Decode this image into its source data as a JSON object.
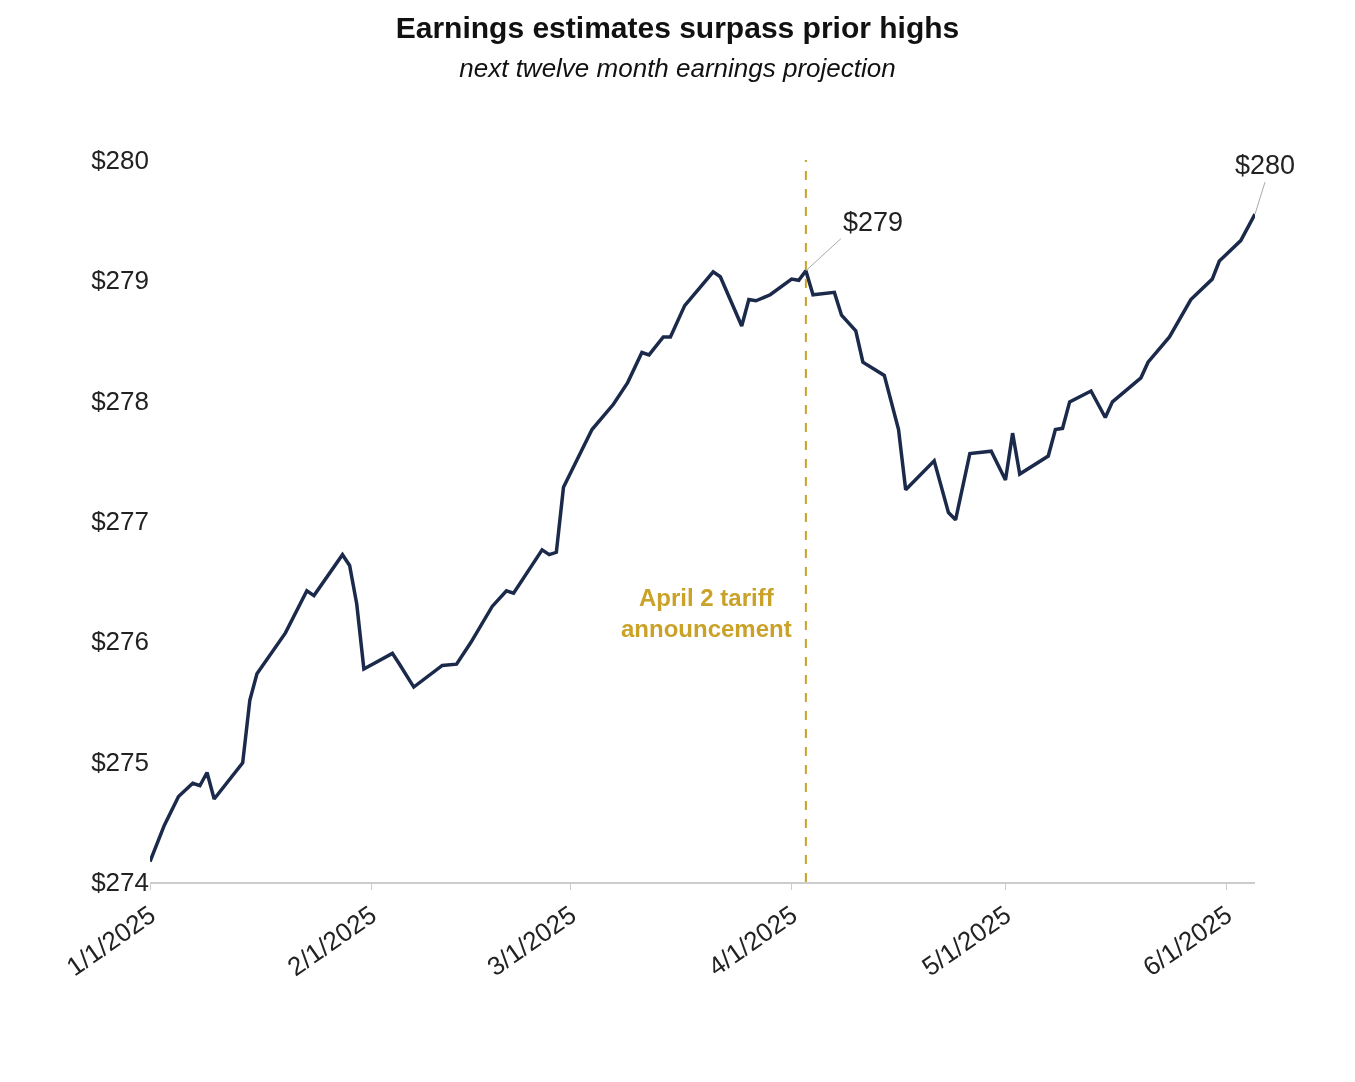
{
  "chart_data": {
    "type": "line",
    "title": "Earnings estimates surpass prior highs",
    "subtitle": "next twelve month earnings projection",
    "x": [
      "2025-01-01",
      "2025-01-03",
      "2025-01-05",
      "2025-01-07",
      "2025-01-08",
      "2025-01-09",
      "2025-01-10",
      "2025-01-14",
      "2025-01-15",
      "2025-01-16",
      "2025-01-20",
      "2025-01-23",
      "2025-01-24",
      "2025-01-28",
      "2025-01-29",
      "2025-01-30",
      "2025-01-31",
      "2025-02-04",
      "2025-02-05",
      "2025-02-07",
      "2025-02-11",
      "2025-02-13",
      "2025-02-15",
      "2025-02-18",
      "2025-02-20",
      "2025-02-21",
      "2025-02-25",
      "2025-02-26",
      "2025-02-27",
      "2025-02-28",
      "2025-03-04",
      "2025-03-07",
      "2025-03-09",
      "2025-03-11",
      "2025-03-12",
      "2025-03-14",
      "2025-03-15",
      "2025-03-17",
      "2025-03-21",
      "2025-03-22",
      "2025-03-25",
      "2025-03-26",
      "2025-03-27",
      "2025-03-29",
      "2025-04-01",
      "2025-04-02",
      "2025-04-03",
      "2025-04-04",
      "2025-04-07",
      "2025-04-08",
      "2025-04-10",
      "2025-04-11",
      "2025-04-14",
      "2025-04-16",
      "2025-04-17",
      "2025-04-21",
      "2025-04-23",
      "2025-04-24",
      "2025-04-26",
      "2025-04-29",
      "2025-05-01",
      "2025-05-02",
      "2025-05-03",
      "2025-05-07",
      "2025-05-08",
      "2025-05-09",
      "2025-05-10",
      "2025-05-13",
      "2025-05-15",
      "2025-05-16",
      "2025-05-20",
      "2025-05-21",
      "2025-05-24",
      "2025-05-27",
      "2025-05-30",
      "2025-05-31",
      "2025-06-03",
      "2025-06-05"
    ],
    "series": [
      {
        "color": "#1b2a4a",
        "values": [
          274.17,
          274.47,
          274.71,
          274.82,
          274.8,
          274.91,
          274.69,
          274.99,
          275.51,
          275.73,
          276.07,
          276.42,
          276.38,
          276.72,
          276.63,
          276.31,
          275.77,
          275.9,
          275.81,
          275.62,
          275.8,
          275.81,
          275.99,
          276.29,
          276.42,
          276.4,
          276.76,
          276.72,
          276.74,
          277.28,
          277.76,
          277.97,
          278.15,
          278.4,
          278.38,
          278.53,
          278.53,
          278.79,
          279.07,
          279.03,
          278.62,
          278.84,
          278.83,
          278.88,
          279.01,
          279.0,
          279.08,
          278.88,
          278.9,
          278.71,
          278.58,
          278.32,
          278.21,
          277.76,
          277.26,
          277.5,
          277.07,
          277.01,
          277.56,
          277.58,
          277.34,
          277.73,
          277.39,
          277.54,
          277.76,
          277.77,
          277.99,
          278.08,
          277.86,
          277.99,
          278.19,
          278.32,
          278.53,
          278.84,
          279.01,
          279.16,
          279.33,
          279.55
        ]
      }
    ],
    "xlim": [
      "2025-01-01",
      "2025-06-05"
    ],
    "xticks": [
      {
        "value": "2025-01-01",
        "label": "1/1/2025"
      },
      {
        "value": "2025-02-01",
        "label": "2/1/2025"
      },
      {
        "value": "2025-03-01",
        "label": "3/1/2025"
      },
      {
        "value": "2025-04-01",
        "label": "4/1/2025"
      },
      {
        "value": "2025-05-01",
        "label": "5/1/2025"
      },
      {
        "value": "2025-06-01",
        "label": "6/1/2025"
      }
    ],
    "ylim": [
      274,
      280
    ],
    "yticks": [
      {
        "value": 274,
        "label": "$274"
      },
      {
        "value": 275,
        "label": "$275"
      },
      {
        "value": 276,
        "label": "$276"
      },
      {
        "value": 277,
        "label": "$277"
      },
      {
        "value": 278,
        "label": "$278"
      },
      {
        "value": 279,
        "label": "$279"
      },
      {
        "value": 280,
        "label": "$280"
      }
    ],
    "ref_lines": [
      {
        "axis": "x",
        "value": "2025-04-03",
        "label": "April 2 tariff announcement",
        "color": "#c9a227",
        "line_style": "dashed"
      }
    ],
    "annotations": [
      {
        "text": "$279",
        "x": "2025-04-03",
        "y": 279.08
      },
      {
        "text": "$280",
        "x": "2025-06-05",
        "y": 279.55
      }
    ],
    "marker": "none",
    "line_style": "solid"
  }
}
